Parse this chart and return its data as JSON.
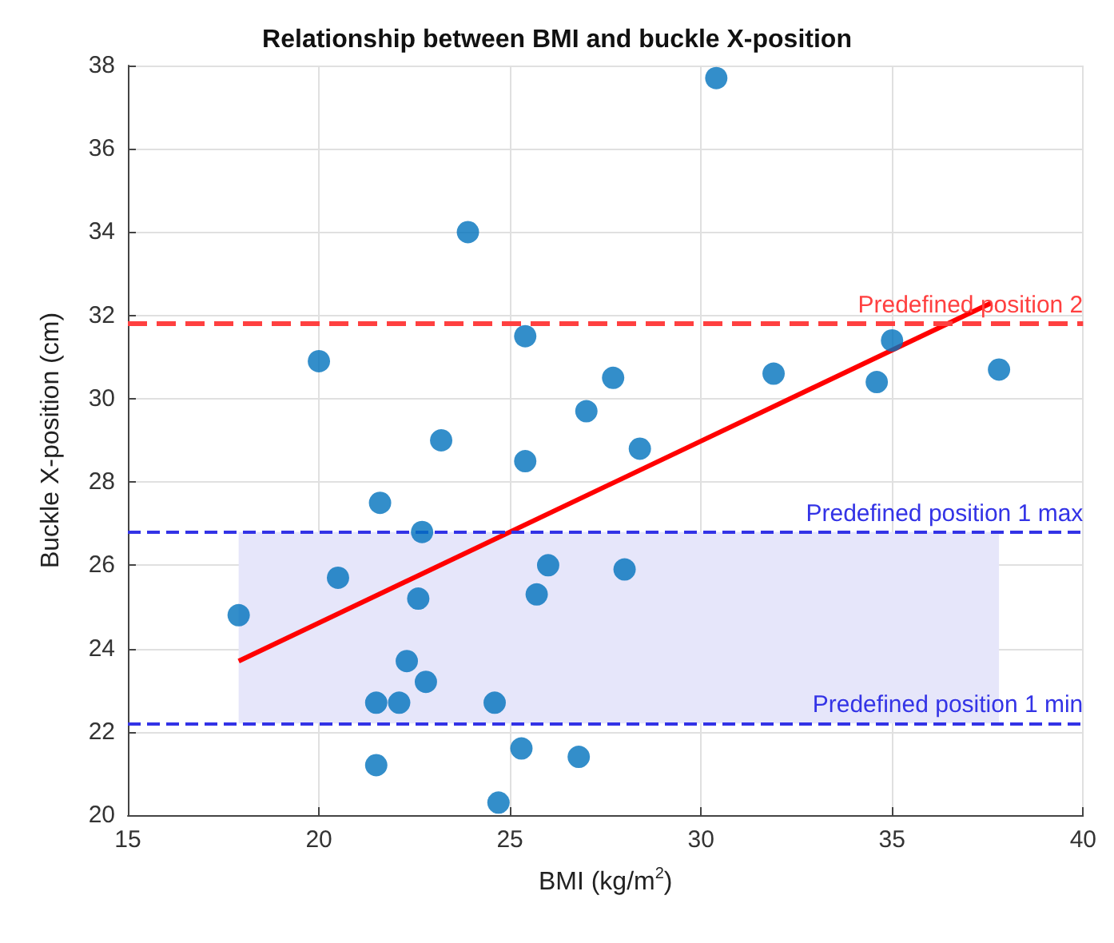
{
  "chart_data": {
    "type": "scatter",
    "title": "Relationship between BMI and buckle X-position",
    "xlabel": "BMI (kg/m$^{2}$)",
    "ylabel": "Buckle X-position (cm)",
    "xlim": [
      15,
      40
    ],
    "xticks": [
      15,
      20,
      25,
      30,
      35,
      40
    ],
    "ylim": [
      20,
      38
    ],
    "yticks": [
      20,
      22,
      24,
      26,
      28,
      30,
      32,
      34,
      36,
      38
    ],
    "grid": true,
    "series": [
      {
        "marker": "circle",
        "color": "#0072bd",
        "x": [
          17.9,
          20.5,
          21.6,
          22.7,
          22.6,
          22.3,
          22.8,
          21.5,
          22.1,
          24.6,
          21.5,
          24.7,
          25.3,
          26.8,
          26.0,
          25.7,
          25.4,
          28.0,
          20.0,
          23.9,
          25.4,
          23.2,
          27.0,
          27.7,
          30.4,
          28.4,
          31.9,
          34.6,
          35.0,
          37.8
        ],
        "values": [
          24.8,
          25.7,
          27.5,
          26.8,
          25.2,
          23.7,
          23.2,
          22.7,
          22.7,
          22.7,
          21.2,
          20.3,
          21.6,
          21.4,
          26.0,
          25.3,
          28.5,
          25.9,
          30.9,
          34.0,
          31.5,
          29.0,
          29.7,
          30.5,
          37.7,
          28.8,
          30.6,
          30.4,
          31.4,
          30.7
        ]
      },
      {
        "type": "line",
        "color": "#ff0000",
        "x": [
          17.9,
          37.6
        ],
        "values": [
          23.7,
          32.3
        ]
      }
    ],
    "ref_lines": [
      {
        "axis": "y",
        "value": 31.8,
        "label": "Predefined position 2",
        "color": "#ff4040",
        "line_style": "dashed"
      },
      {
        "axis": "y",
        "value": 26.8,
        "label": "Predefined position 1 max",
        "color": "#3333e6",
        "line_style": "dashed"
      },
      {
        "axis": "y",
        "value": 22.2,
        "label": "Predefined position 1 min",
        "color": "#3333e6",
        "line_style": "dashed"
      }
    ],
    "bands": [
      {
        "axis": "y",
        "from": 22.2,
        "to": 26.8,
        "color": "#e6e6fa"
      }
    ]
  }
}
